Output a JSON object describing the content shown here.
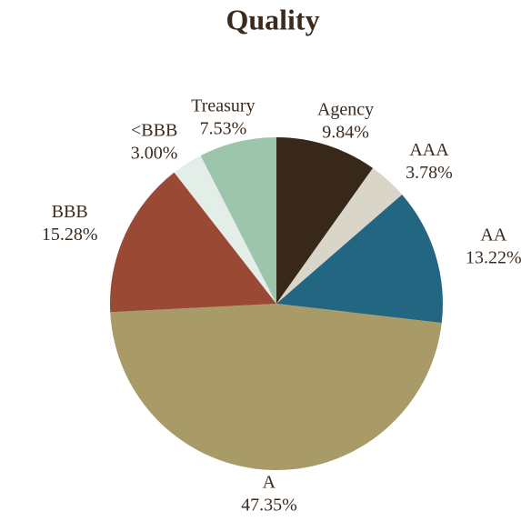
{
  "chart_data": {
    "type": "pie",
    "title": "Quality",
    "categories": [
      "Agency",
      "AAA",
      "AA",
      "A",
      "BBB",
      "<BBB",
      "Treasury"
    ],
    "values": [
      9.84,
      3.78,
      13.22,
      47.35,
      15.28,
      3.0,
      7.53
    ],
    "value_labels": [
      "9.84%",
      "3.78%",
      "13.22%",
      "47.35%",
      "15.28%",
      "3.00%",
      "7.53%"
    ],
    "colors": [
      "#37281a",
      "#d9d5c9",
      "#236682",
      "#a89b68",
      "#9a4935",
      "#e3eee8",
      "#9dc5ab"
    ]
  }
}
